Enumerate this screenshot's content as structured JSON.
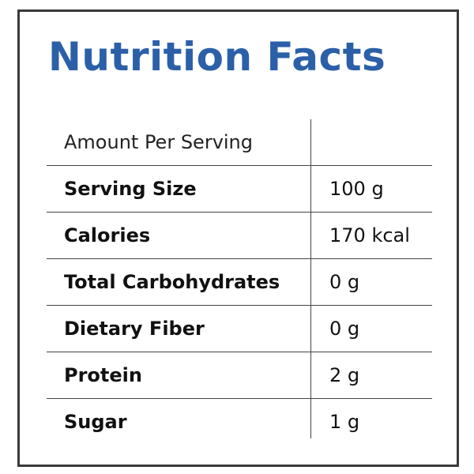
{
  "title": "Nutrition Facts",
  "table": {
    "header": "Amount Per Serving",
    "rows": [
      [
        "Serving Size",
        "100 g"
      ],
      [
        "Calories",
        "170 kcal"
      ],
      [
        "Total Carbohydrates",
        "0 g"
      ],
      [
        "Dietary Fiber",
        "0 g"
      ],
      [
        "Protein",
        "2 g"
      ],
      [
        "Sugar",
        "1 g"
      ]
    ]
  }
}
